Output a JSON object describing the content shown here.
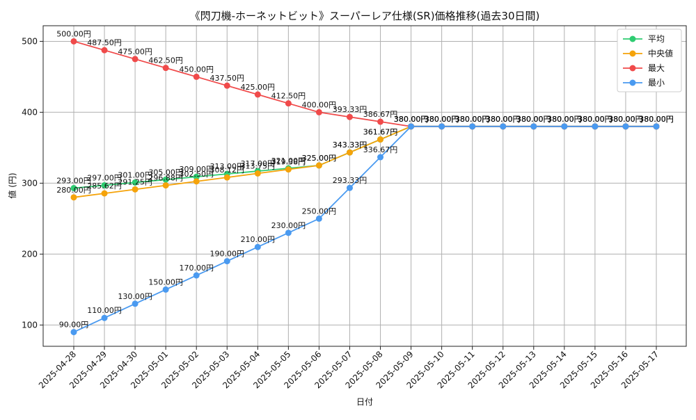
{
  "chart_data": {
    "type": "line",
    "title": "《閃刀機-ホーネットビット》スーパーレア仕様(SR)価格推移(過去30日間)",
    "xlabel": "日付",
    "ylabel": "値 (円)",
    "ylim": [
      70,
      522
    ],
    "yticks": [
      100,
      200,
      300,
      400,
      500
    ],
    "grid": true,
    "legend_position": "top-right",
    "value_suffix": "円",
    "categories": [
      "2025-04-28",
      "2025-04-29",
      "2025-04-30",
      "2025-05-01",
      "2025-05-02",
      "2025-05-03",
      "2025-05-04",
      "2025-05-05",
      "2025-05-06",
      "2025-05-07",
      "2025-05-08",
      "2025-05-09",
      "2025-05-10",
      "2025-05-11",
      "2025-05-12",
      "2025-05-13",
      "2025-05-14",
      "2025-05-15",
      "2025-05-16",
      "2025-05-17"
    ],
    "series": [
      {
        "name": "平均",
        "color": "#2ecc71",
        "values": [
          293.0,
          297.0,
          301.0,
          305.0,
          309.0,
          313.0,
          317.0,
          321.0,
          325.0,
          343.33,
          361.67,
          380.0,
          380.0,
          380.0,
          380.0,
          380.0,
          380.0,
          380.0,
          380.0,
          380.0
        ]
      },
      {
        "name": "中央値",
        "color": "#f5a30a",
        "values": [
          280.0,
          285.62,
          291.25,
          296.88,
          302.5,
          308.12,
          313.75,
          319.38,
          325.0,
          343.33,
          361.67,
          380.0,
          380.0,
          380.0,
          380.0,
          380.0,
          380.0,
          380.0,
          380.0,
          380.0
        ]
      },
      {
        "name": "最大",
        "color": "#f04a4a",
        "values": [
          500.0,
          487.5,
          475.0,
          462.5,
          450.0,
          437.5,
          425.0,
          412.5,
          400.0,
          393.33,
          386.67,
          380.0,
          380.0,
          380.0,
          380.0,
          380.0,
          380.0,
          380.0,
          380.0,
          380.0
        ]
      },
      {
        "name": "最小",
        "color": "#4a9af0",
        "values": [
          90.0,
          110.0,
          130.0,
          150.0,
          170.0,
          190.0,
          210.0,
          230.0,
          250.0,
          293.33,
          336.67,
          380.0,
          380.0,
          380.0,
          380.0,
          380.0,
          380.0,
          380.0,
          380.0,
          380.0
        ]
      }
    ]
  }
}
